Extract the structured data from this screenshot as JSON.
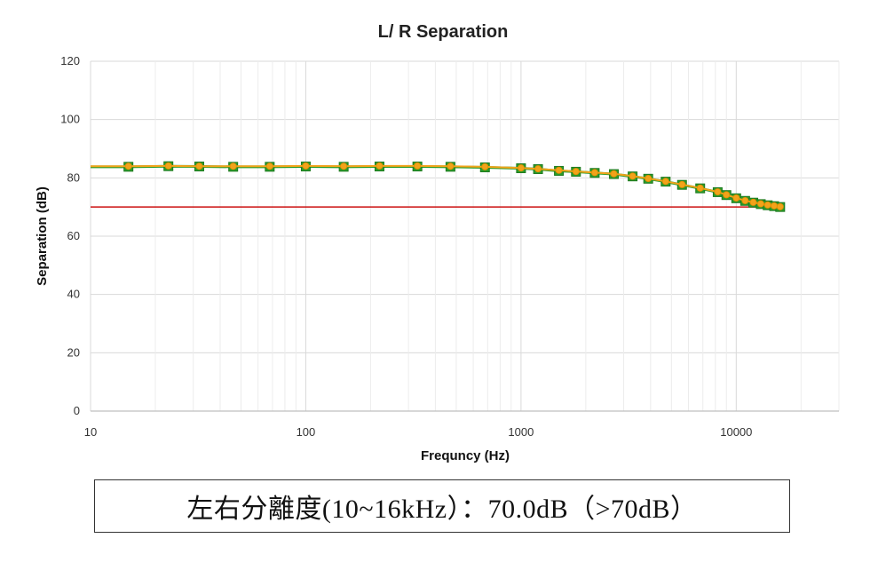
{
  "chart_data": {
    "type": "line",
    "title": "L/ R  Separation",
    "xlabel": "Frequncy (Hz)",
    "ylabel": "Separation (dB)",
    "x_scale": "log",
    "xlim": [
      10,
      30000
    ],
    "ylim": [
      0,
      120
    ],
    "x_ticks": [
      10,
      100,
      1000,
      10000
    ],
    "x_tick_labels": [
      "10",
      "100",
      "1000",
      "10000"
    ],
    "y_ticks": [
      0,
      20,
      40,
      60,
      80,
      100,
      120
    ],
    "y_tick_labels": [
      "0",
      "20",
      "40",
      "60",
      "80",
      "100",
      "120"
    ],
    "grid": true,
    "legend": "none",
    "x": [
      15,
      23,
      32,
      46,
      68,
      100,
      150,
      220,
      330,
      470,
      680,
      1000,
      1200,
      1500,
      1800,
      2200,
      2700,
      3300,
      3900,
      4700,
      5600,
      6800,
      8200,
      9000,
      10000,
      11000,
      12000,
      13000,
      14000,
      15000,
      16000
    ],
    "series": [
      {
        "color": "#2a9d2a",
        "marker": "square",
        "values": [
          83.8,
          84.0,
          83.9,
          83.8,
          83.8,
          83.9,
          83.8,
          83.9,
          83.9,
          83.8,
          83.6,
          83.3,
          83.0,
          82.4,
          82.1,
          81.7,
          81.3,
          80.5,
          79.7,
          78.7,
          77.6,
          76.4,
          75.1,
          74.1,
          73.0,
          72.1,
          71.5,
          71.0,
          70.6,
          70.3,
          70.0
        ]
      },
      {
        "color": "#f2a31a",
        "marker": "circle",
        "values": [
          84.0,
          84.1,
          84.0,
          84.0,
          84.0,
          84.1,
          84.0,
          84.1,
          84.1,
          84.0,
          83.8,
          83.4,
          83.1,
          82.6,
          82.2,
          81.8,
          81.4,
          80.6,
          79.8,
          78.8,
          77.7,
          76.5,
          75.2,
          74.2,
          73.1,
          72.2,
          71.6,
          71.1,
          70.7,
          70.4,
          70.1
        ]
      }
    ],
    "reference_line": {
      "y": 70,
      "color": "#cc1111"
    }
  },
  "caption": "左右分離度(10~16kHz）：70.0dB（>70dB）"
}
